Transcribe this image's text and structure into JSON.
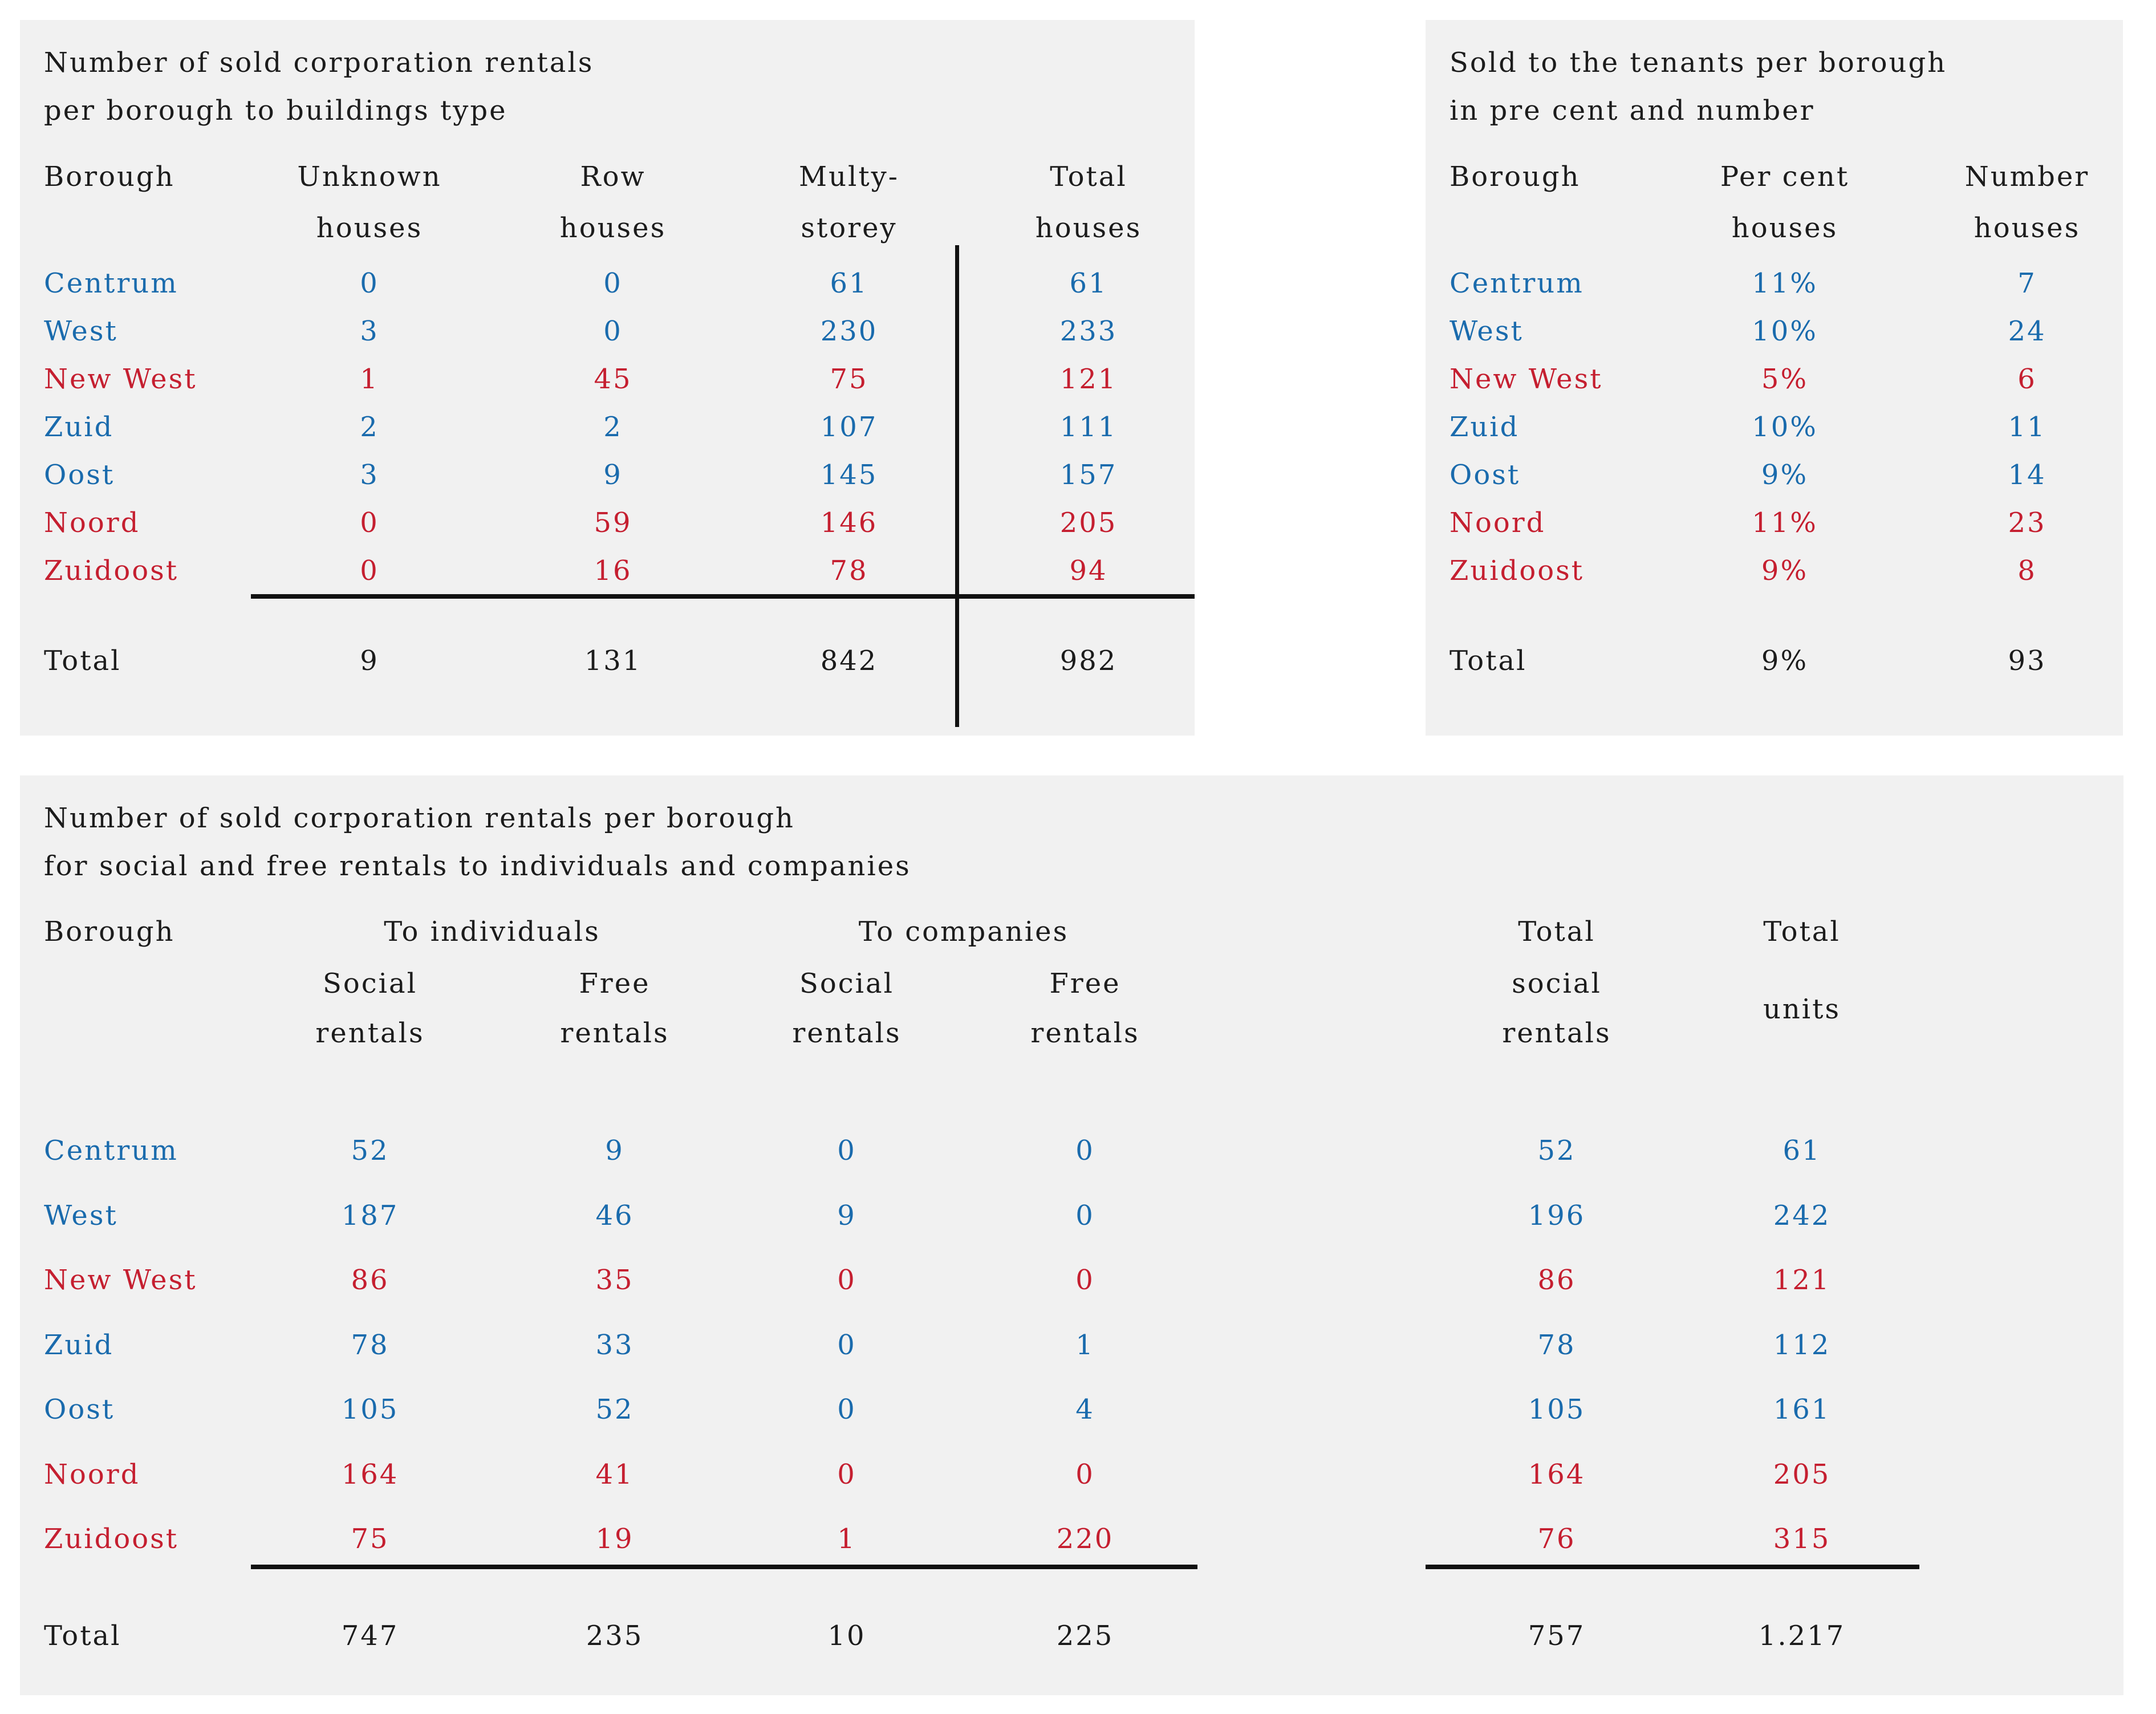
{
  "colors": {
    "page_bg": "#ffffff",
    "panel_bg": "#f1f1f1",
    "text": "#1c1c1c",
    "blue": "#1a6bad",
    "red": "#c51f30",
    "rule": "#111111"
  },
  "tables": {
    "buildings": {
      "title": [
        "Number of sold corporation rentals",
        "per borough to buildings type"
      ],
      "header": {
        "borough": "Borough",
        "cols": [
          [
            "Unknown",
            "houses"
          ],
          [
            "Row",
            "houses"
          ],
          [
            "Multy-",
            "storey"
          ],
          [
            "Total",
            "houses"
          ]
        ]
      },
      "rows": [
        {
          "borough": "Centrum",
          "color": "blue",
          "values": [
            "0",
            "0",
            "61",
            "61"
          ]
        },
        {
          "borough": "West",
          "color": "blue",
          "values": [
            "3",
            "0",
            "230",
            "233"
          ]
        },
        {
          "borough": "New West",
          "color": "red",
          "values": [
            "1",
            "45",
            "75",
            "121"
          ]
        },
        {
          "borough": "Zuid",
          "color": "blue",
          "values": [
            "2",
            "2",
            "107",
            "111"
          ]
        },
        {
          "borough": "Oost",
          "color": "blue",
          "values": [
            "3",
            "9",
            "145",
            "157"
          ]
        },
        {
          "borough": "Noord",
          "color": "red",
          "values": [
            "0",
            "59",
            "146",
            "205"
          ]
        },
        {
          "borough": "Zuidoost",
          "color": "red",
          "values": [
            "0",
            "16",
            "78",
            "94"
          ]
        }
      ],
      "total": {
        "label": "Total",
        "values": [
          "9",
          "131",
          "842",
          "982"
        ]
      }
    },
    "tenants": {
      "title": [
        "Sold to the tenants per borough",
        "in pre cent and number"
      ],
      "header": {
        "borough": "Borough",
        "cols": [
          [
            "Per cent",
            "houses"
          ],
          [
            "Number",
            "houses"
          ]
        ]
      },
      "rows": [
        {
          "borough": "Centrum",
          "color": "blue",
          "values": [
            "11%",
            "7"
          ]
        },
        {
          "borough": "West",
          "color": "blue",
          "values": [
            "10%",
            "24"
          ]
        },
        {
          "borough": "New West",
          "color": "red",
          "values": [
            "5%",
            "6"
          ]
        },
        {
          "borough": "Zuid",
          "color": "blue",
          "values": [
            "10%",
            "11"
          ]
        },
        {
          "borough": "Oost",
          "color": "blue",
          "values": [
            "9%",
            "14"
          ]
        },
        {
          "borough": "Noord",
          "color": "red",
          "values": [
            "11%",
            "23"
          ]
        },
        {
          "borough": "Zuidoost",
          "color": "red",
          "values": [
            "9%",
            "8"
          ]
        }
      ],
      "total": {
        "label": "Total",
        "values": [
          "9%",
          "93"
        ]
      }
    },
    "social": {
      "title": [
        "Number of sold corporation rentals per borough",
        "for social and free rentals to individuals and companies"
      ],
      "header": {
        "borough": "Borough",
        "groups": [
          "To individuals",
          "To companies"
        ],
        "sub": [
          [
            "Social",
            "rentals"
          ],
          [
            "Free",
            "rentals"
          ],
          [
            "Social",
            "rentals"
          ],
          [
            "Free",
            "rentals"
          ]
        ],
        "total_social": [
          "Total",
          "social",
          "rentals"
        ],
        "total_units": [
          "Total",
          "units"
        ]
      },
      "rows": [
        {
          "borough": "Centrum",
          "color": "blue",
          "values": [
            "52",
            "9",
            "0",
            "0",
            "52",
            "61"
          ]
        },
        {
          "borough": "West",
          "color": "blue",
          "values": [
            "187",
            "46",
            "9",
            "0",
            "196",
            "242"
          ]
        },
        {
          "borough": "New West",
          "color": "red",
          "values": [
            "86",
            "35",
            "0",
            "0",
            "86",
            "121"
          ]
        },
        {
          "borough": "Zuid",
          "color": "blue",
          "values": [
            "78",
            "33",
            "0",
            "1",
            "78",
            "112"
          ]
        },
        {
          "borough": "Oost",
          "color": "blue",
          "values": [
            "105",
            "52",
            "0",
            "4",
            "105",
            "161"
          ]
        },
        {
          "borough": "Noord",
          "color": "red",
          "values": [
            "164",
            "41",
            "0",
            "0",
            "164",
            "205"
          ]
        },
        {
          "borough": "Zuidoost",
          "color": "red",
          "values": [
            "75",
            "19",
            "1",
            "220",
            "76",
            "315"
          ]
        }
      ],
      "total": {
        "label": "Total",
        "values": [
          "747",
          "235",
          "10",
          "225",
          "757",
          "1.217"
        ]
      }
    }
  }
}
